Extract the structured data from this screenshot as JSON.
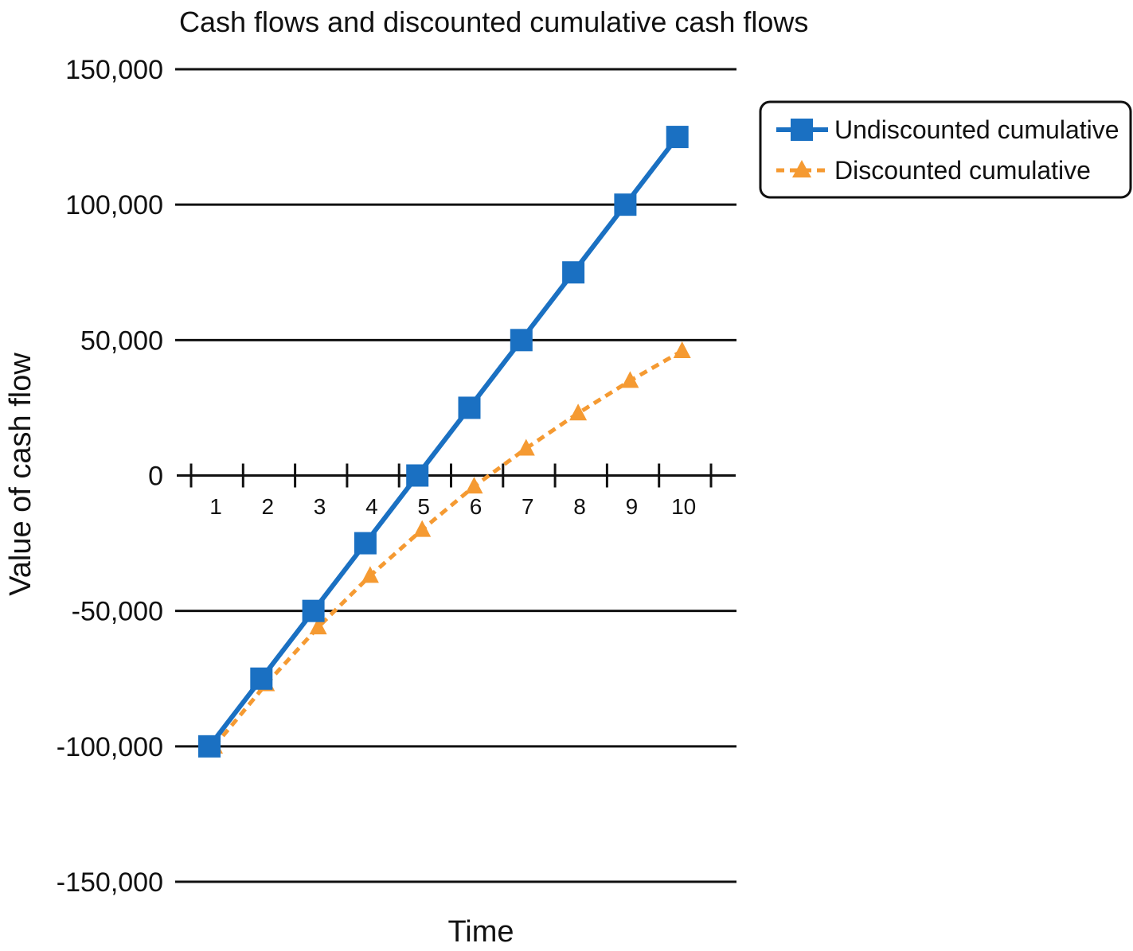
{
  "chart_data": {
    "type": "line",
    "title": "Cash flows and discounted cumulative cash flows",
    "xlabel": "Time",
    "ylabel": "Value of cash flow",
    "x": [
      1,
      2,
      3,
      4,
      5,
      6,
      7,
      8,
      9,
      10
    ],
    "x_tick_labels": [
      "1",
      "2",
      "3",
      "4",
      "5",
      "6",
      "7",
      "8",
      "9",
      "10"
    ],
    "ylim": [
      -150000,
      150000
    ],
    "y_ticks": [
      150000,
      100000,
      50000,
      0,
      -50000,
      -100000,
      -150000
    ],
    "y_tick_labels": [
      "150,000",
      "100,000",
      "50,000",
      "0",
      "-50,000",
      "-100,000",
      "-150,000"
    ],
    "grid": "horizontal",
    "legend_position": "top-right, outside plot",
    "series": [
      {
        "name": "Undiscounted cumulative",
        "color": "#1a70c2",
        "marker": "square",
        "line_style": "solid",
        "values": [
          -100000,
          -75000,
          -50000,
          -25000,
          0,
          25000,
          50000,
          75000,
          100000,
          125000
        ]
      },
      {
        "name": "Discounted cumulative",
        "color": "#f59a32",
        "marker": "triangle",
        "line_style": "dashed",
        "values": [
          -100000,
          -77000,
          -56000,
          -37000,
          -20000,
          -4000,
          10000,
          23000,
          35000,
          46000
        ]
      }
    ]
  }
}
